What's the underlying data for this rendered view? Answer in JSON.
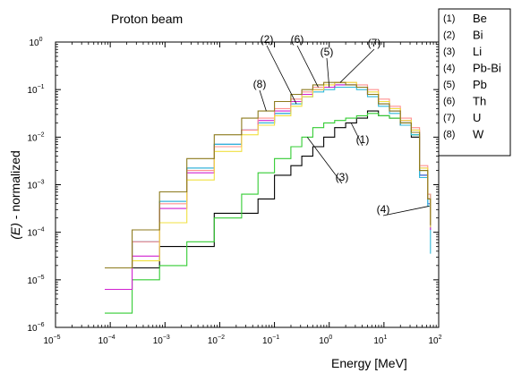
{
  "chart_data": {
    "type": "line",
    "title": "Proton beam",
    "xlabel": "Energy [MeV]",
    "ylabel_italic": "(E)",
    "ylabel_rest": "- normalized",
    "xscale": "log",
    "yscale": "log",
    "xlim_exp": [
      -5,
      2
    ],
    "ylim_exp": [
      -6,
      0
    ],
    "xticks": [
      {
        "exp": -5,
        "base": "10",
        "sup": "−5"
      },
      {
        "exp": -4,
        "base": "10",
        "sup": "−4"
      },
      {
        "exp": -3,
        "base": "10",
        "sup": "−3"
      },
      {
        "exp": -2,
        "base": "10",
        "sup": "−2"
      },
      {
        "exp": -1,
        "base": "10",
        "sup": "−1"
      },
      {
        "exp": 0,
        "base": "10",
        "sup": "0"
      },
      {
        "exp": 1,
        "base": "10",
        "sup": "1"
      },
      {
        "exp": 2,
        "base": "10",
        "sup": "2"
      }
    ],
    "yticks": [
      {
        "exp": -6,
        "base": "10",
        "sup": "−6"
      },
      {
        "exp": -5,
        "base": "10",
        "sup": "−5"
      },
      {
        "exp": -4,
        "base": "10",
        "sup": "−4"
      },
      {
        "exp": -3,
        "base": "10",
        "sup": "−3"
      },
      {
        "exp": -2,
        "base": "10",
        "sup": "−2"
      },
      {
        "exp": -1,
        "base": "10",
        "sup": "−1"
      },
      {
        "exp": 0,
        "base": "10",
        "sup": "0"
      }
    ],
    "grid": false,
    "legend_position": "top-right",
    "bin_edges_exp": [
      -4.1,
      -3.6,
      -3.1,
      -2.6,
      -2.1,
      -1.6,
      -1.3,
      -1.0,
      -0.7,
      -0.5,
      -0.3,
      -0.1,
      0.1,
      0.3,
      0.5,
      0.7,
      0.9,
      1.1,
      1.3,
      1.5,
      1.65,
      1.8,
      1.85
    ],
    "series": [
      {
        "index": "(1)",
        "name": "Be",
        "color": "#000000",
        "log_y": [
          -4.75,
          -4.75,
          -4.3,
          -4.3,
          -3.6,
          -3.6,
          -3.3,
          -2.8,
          -2.6,
          -2.4,
          -2.2,
          -2.0,
          -1.8,
          -1.7,
          -1.6,
          -1.45,
          -1.55,
          -1.6,
          -1.75,
          -2.0,
          -2.8,
          -3.3,
          -3.6
        ]
      },
      {
        "index": "(2)",
        "name": "Bi",
        "color": "#3060e0",
        "log_y": [
          -4.75,
          -4.2,
          -3.35,
          -2.65,
          -2.15,
          -1.85,
          -1.7,
          -1.5,
          -1.3,
          -1.15,
          -1.0,
          -0.95,
          -0.9,
          -0.9,
          -0.95,
          -1.1,
          -1.3,
          -1.45,
          -1.7,
          -1.9,
          -2.8,
          -3.4,
          -3.8
        ]
      },
      {
        "index": "(3)",
        "name": "Li",
        "color": "#33cc33",
        "log_y": [
          -5.7,
          -5.0,
          -4.7,
          -4.2,
          -3.7,
          -3.2,
          -2.75,
          -2.45,
          -2.2,
          -2.0,
          -1.8,
          -1.7,
          -1.65,
          -1.6,
          -1.55,
          -1.5,
          -1.55,
          -1.6,
          -1.7,
          -1.95,
          -2.7,
          -3.2,
          -3.6
        ]
      },
      {
        "index": "(4)",
        "name": "Pb-Bi",
        "color": "#30b8d8",
        "log_y": [
          -4.75,
          -4.2,
          -3.35,
          -2.65,
          -2.15,
          -1.85,
          -1.7,
          -1.5,
          -1.3,
          -1.15,
          -1.05,
          -1.0,
          -0.95,
          -0.95,
          -1.0,
          -1.15,
          -1.35,
          -1.5,
          -1.75,
          -1.95,
          -2.85,
          -3.45,
          -4.45
        ]
      },
      {
        "index": "(5)",
        "name": "Pb",
        "color": "#d020d0",
        "log_y": [
          -5.2,
          -4.5,
          -3.5,
          -2.75,
          -2.2,
          -1.85,
          -1.65,
          -1.45,
          -1.25,
          -1.1,
          -1.0,
          -0.95,
          -0.9,
          -0.9,
          -0.95,
          -1.1,
          -1.25,
          -1.4,
          -1.65,
          -1.85,
          -2.65,
          -3.3,
          -3.95
        ]
      },
      {
        "index": "(6)",
        "name": "Th",
        "color": "#ff9090",
        "log_y": [
          -4.75,
          -4.2,
          -3.4,
          -2.7,
          -2.2,
          -1.85,
          -1.6,
          -1.4,
          -1.2,
          -1.05,
          -0.95,
          -0.9,
          -0.85,
          -0.85,
          -0.9,
          -1.0,
          -1.2,
          -1.35,
          -1.6,
          -1.8,
          -2.6,
          -3.2,
          -3.8
        ]
      },
      {
        "index": "(7)",
        "name": "U",
        "color": "#f0e040",
        "log_y": [
          -4.75,
          -4.6,
          -3.8,
          -2.9,
          -2.3,
          -1.95,
          -1.75,
          -1.55,
          -1.35,
          -1.15,
          -1.0,
          -0.9,
          -0.85,
          -0.85,
          -0.95,
          -1.05,
          -1.25,
          -1.4,
          -1.65,
          -1.85,
          -2.65,
          -3.3,
          -3.9
        ]
      },
      {
        "index": "(8)",
        "name": "W",
        "color": "#8c7a1c",
        "log_y": [
          -4.75,
          -3.95,
          -3.15,
          -2.45,
          -1.95,
          -1.6,
          -1.45,
          -1.25,
          -1.1,
          -1.0,
          -0.9,
          -0.85,
          -0.85,
          -0.9,
          -0.95,
          -1.1,
          -1.3,
          -1.45,
          -1.7,
          -1.9,
          -2.7,
          -3.3,
          -3.85
        ]
      }
    ],
    "annotations": [
      {
        "label": "(1)",
        "series": "Be"
      },
      {
        "label": "(2)",
        "series": "Bi"
      },
      {
        "label": "(3)",
        "series": "Li"
      },
      {
        "label": "(4)",
        "series": "Pb-Bi"
      },
      {
        "label": "(5)",
        "series": "Pb"
      },
      {
        "label": "(6)",
        "series": "Th"
      },
      {
        "label": "(7)",
        "series": "U"
      },
      {
        "label": "(8)",
        "series": "W"
      }
    ]
  }
}
